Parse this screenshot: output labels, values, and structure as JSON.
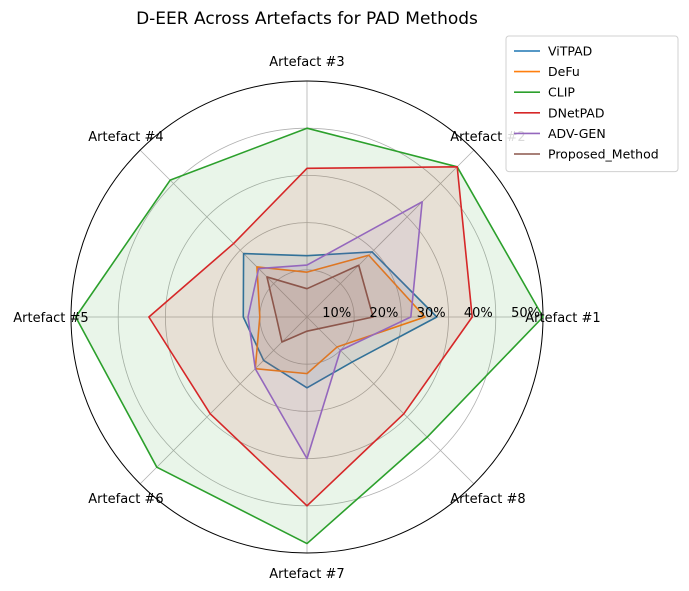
{
  "chart_data": {
    "type": "radar",
    "title": "D-EER Across Artefacts for PAD Methods",
    "categories": [
      "Artefact #1",
      "Artefact #2",
      "Artefact #3",
      "Artefact #4",
      "Artefact #5",
      "Artefact #6",
      "Artefact #7",
      "Artefact #8"
    ],
    "r_ticks": [
      10,
      20,
      30,
      40,
      50
    ],
    "r_tick_labels": [
      "10%",
      "20%",
      "30%",
      "40%",
      "50%"
    ],
    "r_lim": [
      0,
      50
    ],
    "grid": true,
    "legend_position": "top-right",
    "series": [
      {
        "name": "ViTPAD",
        "color": "#1f77b4",
        "values": [
          27.5,
          19.5,
          13,
          19,
          13.5,
          13,
          15,
          13.5
        ]
      },
      {
        "name": "DeFu",
        "color": "#ff7f0e",
        "values": [
          25,
          18.5,
          9.5,
          15,
          10,
          15.5,
          12,
          9
        ]
      },
      {
        "name": "CLIP",
        "color": "#2ca02c",
        "values": [
          50,
          45,
          40,
          41,
          49,
          45,
          48,
          36
        ]
      },
      {
        "name": "DNetPAD",
        "color": "#d62728",
        "values": [
          35,
          45,
          31.5,
          22,
          33.5,
          29,
          40,
          29
        ]
      },
      {
        "name": "ADV-GEN",
        "color": "#9467bd",
        "values": [
          22,
          34.5,
          11,
          14.5,
          12.5,
          15.5,
          30,
          10
        ]
      },
      {
        "name": "Proposed_Method",
        "color": "#8c564b",
        "values": [
          14,
          15.5,
          6,
          12,
          6.5,
          7.5,
          3,
          3.5
        ]
      }
    ]
  }
}
